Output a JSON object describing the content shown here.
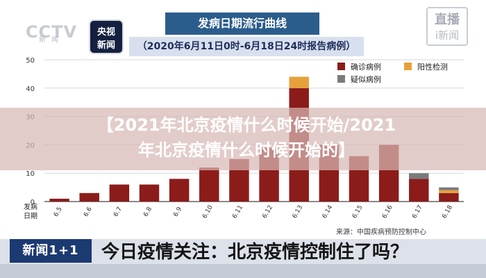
{
  "header": {
    "cctv_logo": "CCTV",
    "cctv_logo_sub": "新闻",
    "news_logo_line1": "央视",
    "news_logo_line2": "新闻",
    "title": "发病日期流行曲线",
    "subtitle": "（2020年6月11日0时-6月18日24时报告病例）",
    "live_badge_top": "直播",
    "live_badge_bottom": "i新闻"
  },
  "banner": {
    "line1": "【2021年北京疫情什么时候开始/2021",
    "line2": "年北京疫情什么时候开始的】"
  },
  "source": "来源：中国疾病预防控制中心",
  "lower_third": {
    "tag": "新闻1+1",
    "headline": "今日疫情关注：北京疫情控制住了吗？"
  },
  "colors": {
    "confirmed": "#8b1c1a",
    "asymptomatic": "#e7a13a",
    "suspected": "#7b7b7b",
    "title_bg": "#2b5d8c",
    "banner": "#d7b9b4"
  },
  "chart_data": {
    "type": "bar",
    "stacked": true,
    "xlabel": "发病日期",
    "ylim": [
      0,
      50
    ],
    "yticks": [
      0,
      10,
      20,
      30,
      40,
      50
    ],
    "grid": true,
    "legend_position": "top-right",
    "categories": [
      "6.5",
      "6.6",
      "6.7",
      "6.8",
      "6.9",
      "6.10",
      "6.11",
      "6.12",
      "6.13",
      "6.14",
      "6.15",
      "6.16",
      "6.17",
      "6.18"
    ],
    "series": [
      {
        "name": "确诊病例",
        "color": "#8b1c1a",
        "values": [
          1,
          3,
          6,
          6,
          8,
          12,
          15,
          19,
          40,
          20,
          16,
          20,
          8,
          3
        ]
      },
      {
        "name": "阳性检测",
        "color": "#e7a13a",
        "values": [
          0,
          0,
          0,
          0,
          0,
          0,
          0,
          0,
          4,
          0,
          0,
          0,
          0,
          1
        ]
      },
      {
        "name": "疑似病例",
        "color": "#7b7b7b",
        "values": [
          0,
          0,
          0,
          0,
          0,
          0,
          0,
          0,
          0,
          0,
          0,
          0,
          2,
          1
        ]
      }
    ]
  }
}
